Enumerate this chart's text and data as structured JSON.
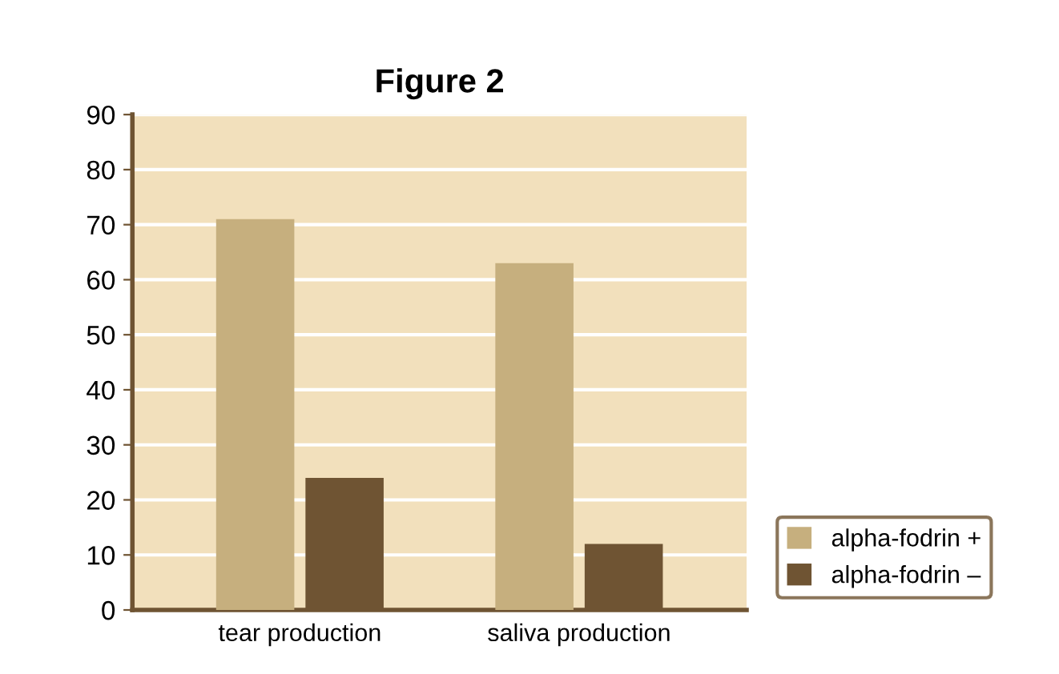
{
  "chart_data": {
    "type": "bar",
    "title": "Figure 2",
    "categories": [
      "tear production",
      "saliva production"
    ],
    "series": [
      {
        "name": "alpha-fodrin +",
        "color": "#c6af7e",
        "values": [
          71,
          63
        ]
      },
      {
        "name": "alpha-fodrin –",
        "color": "#6f5433",
        "values": [
          24,
          12
        ]
      }
    ],
    "ylim": [
      0,
      90
    ],
    "yticks": [
      0,
      10,
      20,
      30,
      40,
      50,
      60,
      70,
      80,
      90
    ],
    "grid": "y",
    "legend": "bottom right"
  }
}
